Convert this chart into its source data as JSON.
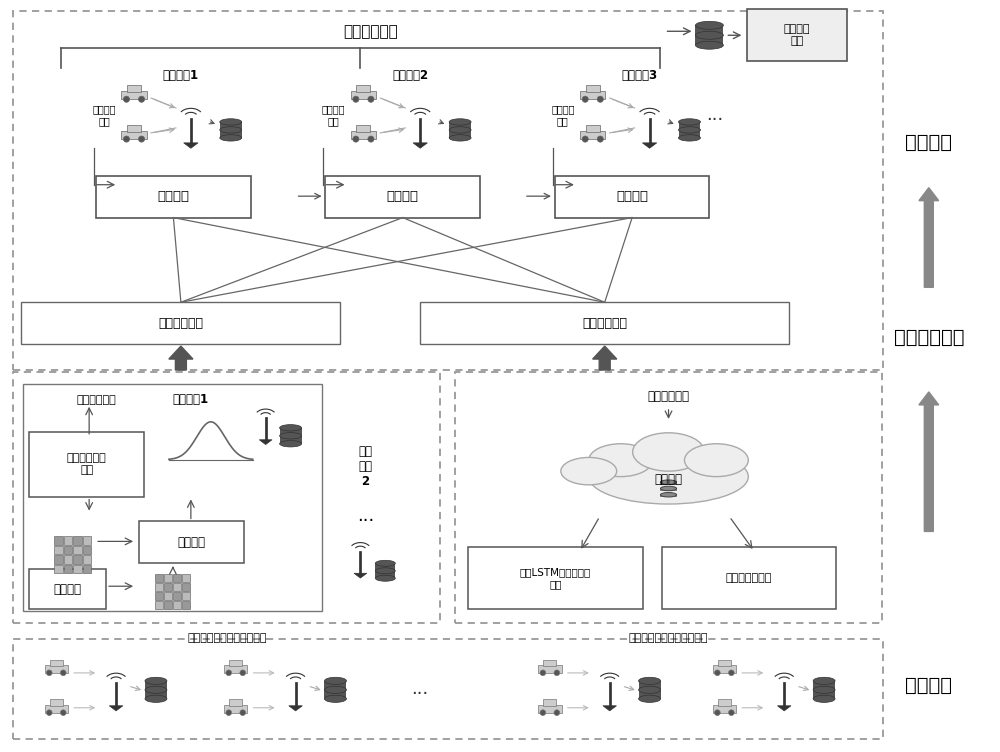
{
  "right_labels": [
    "身份验证",
    "行为模式分析",
    "数据收集"
  ],
  "top_title": "恶意车辆列表",
  "msg_verify": "消息辅助\n验证",
  "edge_node1": "边缘节点1",
  "edge_node2": "边缘节点2",
  "edge_node3": "边缘节点3",
  "realtime_data": "实时车辆\n数据",
  "identity_verify": "身份验证",
  "local_pattern": "局部行为模式",
  "global_pattern": "全局行为模式",
  "left_section_label": "边缘节点执行局部行为分析",
  "right_section_label": "云服务器执行全局行为分析",
  "local_pattern_mid": "局部行为模式",
  "edge_node1_mid": "边缘节点1",
  "train_model": "训练概率分布\n模型",
  "tensor_decomp": "张量分解",
  "tensor_build": "张量构建",
  "edge_node2_mid": "边缘\n节点\n2",
  "global_pattern_mid": "全局行为模式",
  "cloud_server": "云服务器",
  "lstm_learning": "基于LSTM的用户小好\n学习",
  "behavior_correction": "行为波动性校正",
  "bg_color": "#ffffff",
  "text_color": "#000000",
  "border_dark": "#333333",
  "border_mid": "#666666",
  "border_light": "#999999",
  "arrow_color": "#555555",
  "box_fill": "#ffffff",
  "dashed_fill": "#ffffff"
}
